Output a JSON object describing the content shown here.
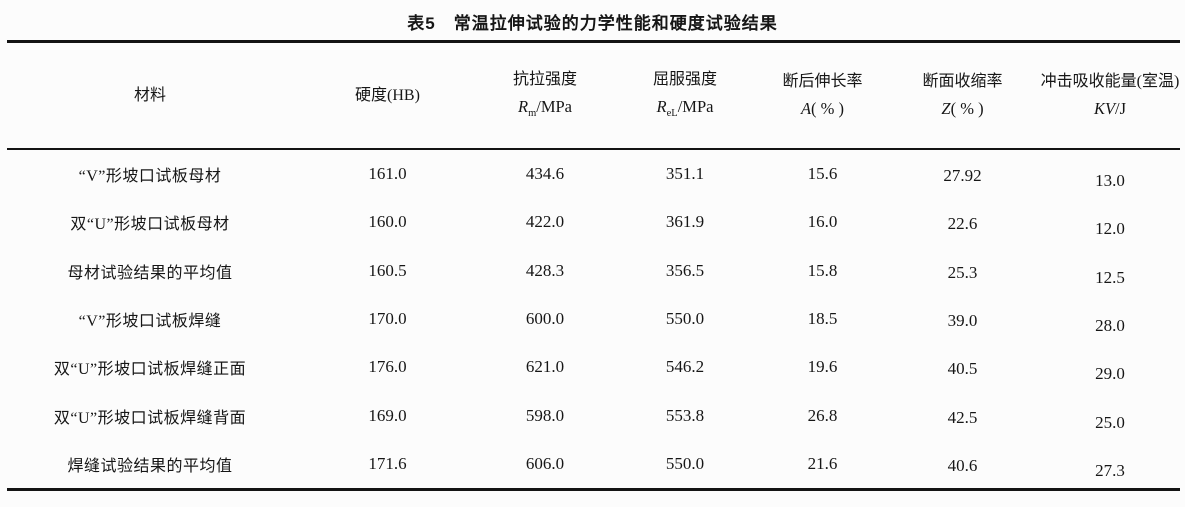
{
  "page": {
    "title": "表5　常温拉伸试验的力学性能和硬度试验结果"
  },
  "table": {
    "columns": [
      {
        "title": "材料"
      },
      {
        "title": "硬度(HB)"
      },
      {
        "title": "抗拉强度",
        "sym": "R",
        "sub": "m",
        "tail": "/MPa"
      },
      {
        "title": "屈服强度",
        "sym": "R",
        "sub": "eL",
        "tail": "/MPa"
      },
      {
        "title": "断后伸长率",
        "sym": "A",
        "tail": "( % )"
      },
      {
        "title": "断面收缩率",
        "sym": "Z",
        "tail": "( % )"
      },
      {
        "title": "冲击吸收能量(室温)",
        "sym": "KV",
        "tail": "/J"
      }
    ],
    "rows": [
      {
        "material": "“V”形坡口试板母材",
        "hardness": "161.0",
        "rm": "434.6",
        "rel": "351.1",
        "a": "15.6",
        "z": "27.92",
        "kv": "13.0"
      },
      {
        "material": "双“U”形坡口试板母材",
        "hardness": "160.0",
        "rm": "422.0",
        "rel": "361.9",
        "a": "16.0",
        "z": "22.6",
        "kv": "12.0"
      },
      {
        "material": "母材试验结果的平均值",
        "hardness": "160.5",
        "rm": "428.3",
        "rel": "356.5",
        "a": "15.8",
        "z": "25.3",
        "kv": "12.5"
      },
      {
        "material": "“V”形坡口试板焊缝",
        "hardness": "170.0",
        "rm": "600.0",
        "rel": "550.0",
        "a": "18.5",
        "z": "39.0",
        "kv": "28.0"
      },
      {
        "material": "双“U”形坡口试板焊缝正面",
        "hardness": "176.0",
        "rm": "621.0",
        "rel": "546.2",
        "a": "19.6",
        "z": "40.5",
        "kv": "29.0"
      },
      {
        "material": "双“U”形坡口试板焊缝背面",
        "hardness": "169.0",
        "rm": "598.0",
        "rel": "553.8",
        "a": "26.8",
        "z": "42.5",
        "kv": "25.0"
      },
      {
        "material": "焊缝试验结果的平均值",
        "hardness": "171.6",
        "rm": "606.0",
        "rel": "550.0",
        "a": "21.6",
        "z": "40.6",
        "kv": "27.3"
      }
    ]
  }
}
